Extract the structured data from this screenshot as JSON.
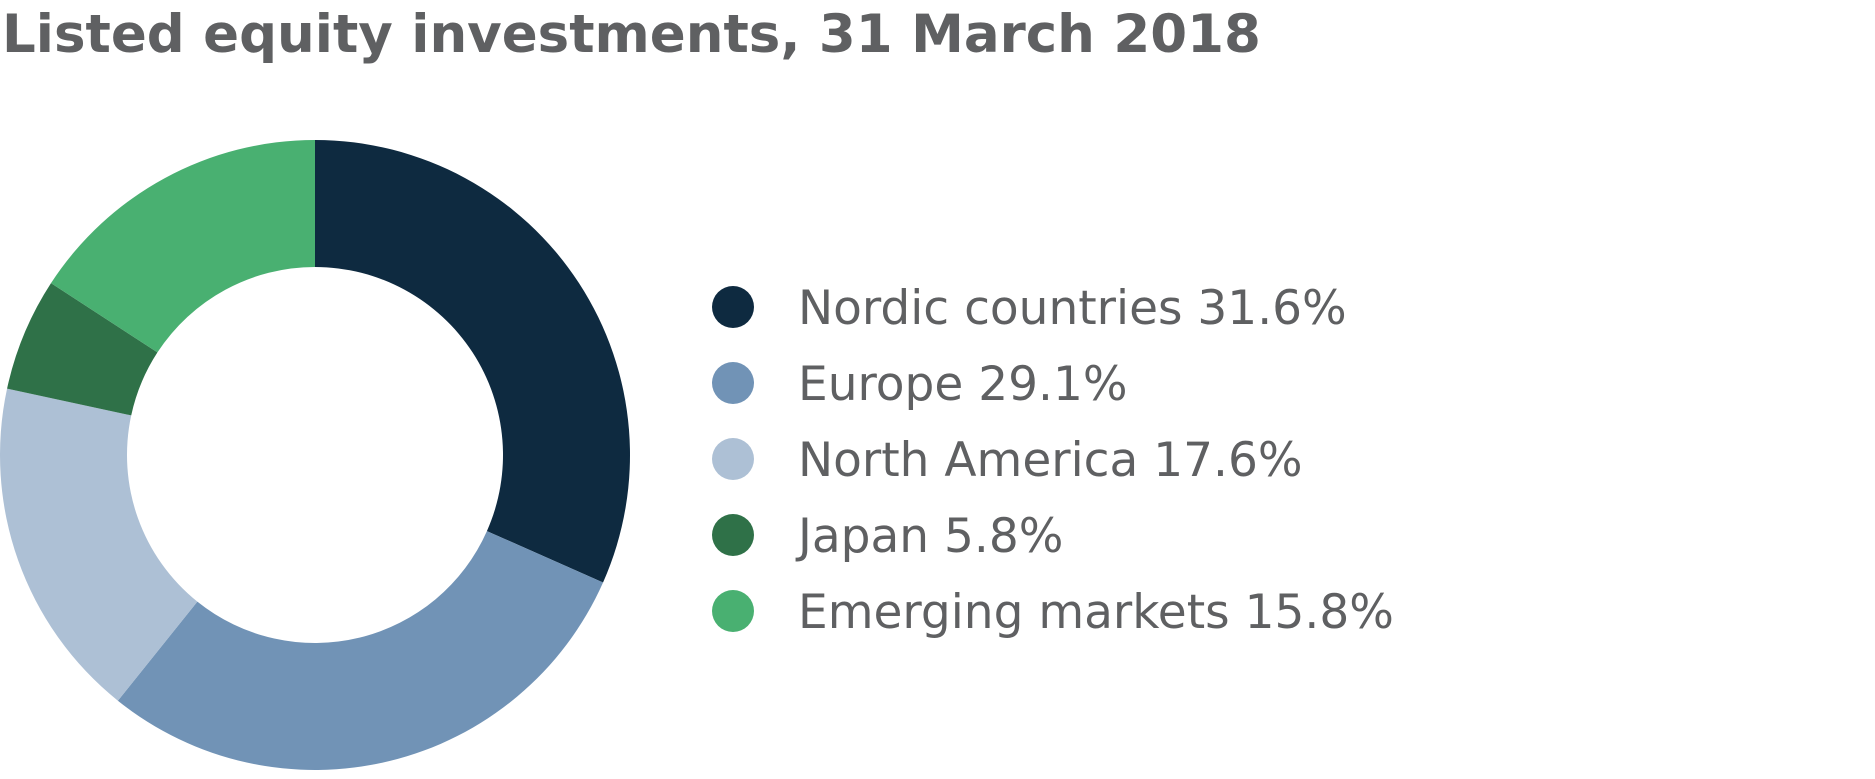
{
  "chart_data": {
    "type": "pie",
    "title": "Listed equity investments, 31 March 2018",
    "donut": true,
    "legend_position": "right",
    "slices": [
      {
        "label": "Nordic countries",
        "value": 31.6,
        "display": "Nordic countries 31.6%",
        "color": "#0e2a40"
      },
      {
        "label": "Europe",
        "value": 29.1,
        "display": "Europe 29.1%",
        "color": "#7193b6"
      },
      {
        "label": "North America",
        "value": 17.6,
        "display": "North America 17.6%",
        "color": "#adc0d5"
      },
      {
        "label": "Japan",
        "value": 5.8,
        "display": "Japan 5.8%",
        "color": "#2f7148"
      },
      {
        "label": "Emerging markets",
        "value": 15.8,
        "display": "Emerging markets 15.8%",
        "color": "#49b071"
      }
    ]
  }
}
